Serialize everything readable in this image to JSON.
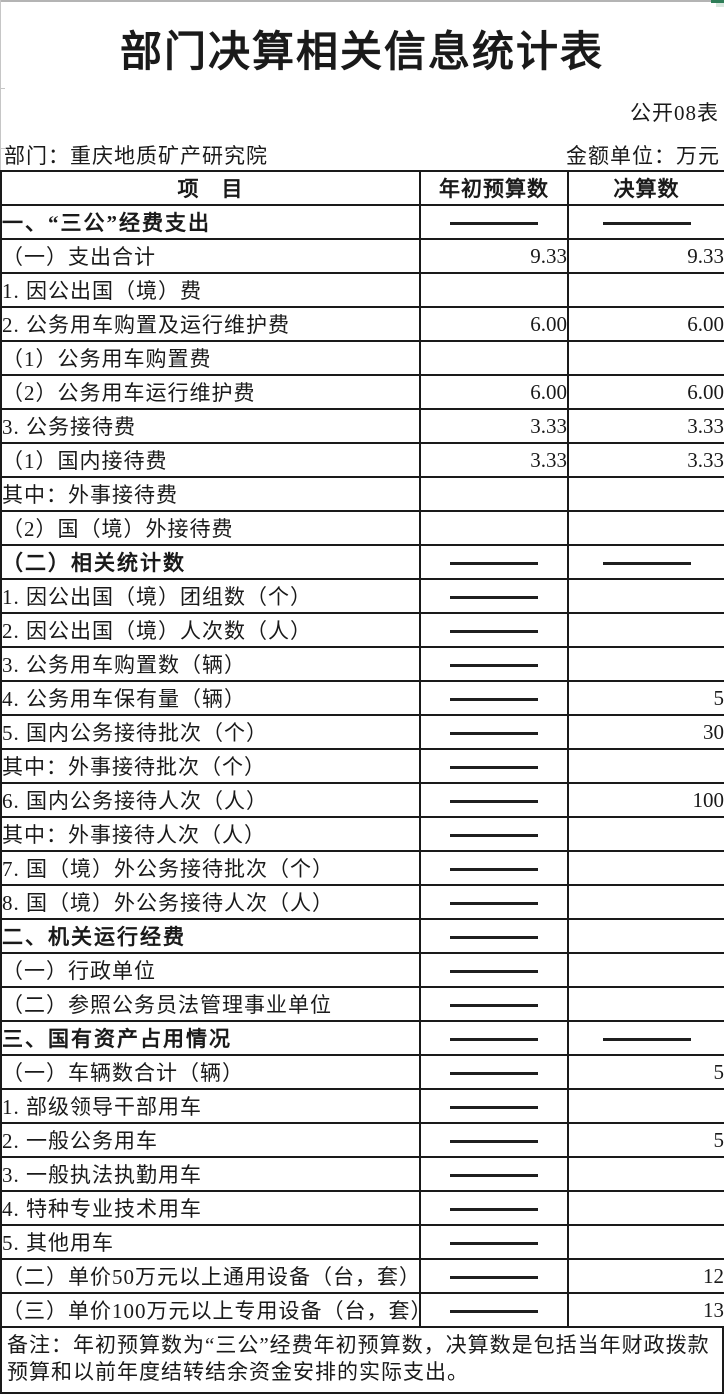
{
  "colors": {
    "excel_green": "#2e7d57",
    "gridline_gray": "#c6c6c6",
    "table_border": "#1a1a1a"
  },
  "header": {
    "title": "部门决算相关信息统计表",
    "table_code": "公开08表",
    "department_label": "部门：重庆地质矿产研究院",
    "unit_label": "金额单位：万元"
  },
  "table": {
    "columns": [
      "项　目",
      "年初预算数",
      "决算数"
    ],
    "dash_symbol": "——",
    "rows": [
      {
        "label": "一、“三公”经费支出",
        "indent": 0,
        "bold": true,
        "budget": "——",
        "final": "——"
      },
      {
        "label": "（一）支出合计",
        "indent": 0,
        "bold": false,
        "budget": "9.33",
        "final": "9.33"
      },
      {
        "label": "1. 因公出国（境）费",
        "indent": 1,
        "bold": false,
        "budget": "",
        "final": ""
      },
      {
        "label": "2. 公务用车购置及运行维护费",
        "indent": 1,
        "bold": false,
        "budget": "6.00",
        "final": "6.00"
      },
      {
        "label": "（1）公务用车购置费",
        "indent": 2,
        "bold": false,
        "budget": "",
        "final": ""
      },
      {
        "label": "（2）公务用车运行维护费",
        "indent": 2,
        "bold": false,
        "budget": "6.00",
        "final": "6.00"
      },
      {
        "label": "3. 公务接待费",
        "indent": 1,
        "bold": false,
        "budget": "3.33",
        "final": "3.33"
      },
      {
        "label": "（1）国内接待费",
        "indent": 2,
        "bold": false,
        "budget": "3.33",
        "final": "3.33"
      },
      {
        "label": "其中：外事接待费",
        "indent": 4,
        "bold": false,
        "budget": "",
        "final": ""
      },
      {
        "label": "（2）国（境）外接待费",
        "indent": 2,
        "bold": false,
        "budget": "",
        "final": ""
      },
      {
        "label": "（二）相关统计数",
        "indent": 0,
        "bold": true,
        "budget": "——",
        "final": "——"
      },
      {
        "label": "1. 因公出国（境）团组数（个）",
        "indent": 1,
        "bold": false,
        "budget": "——",
        "final": ""
      },
      {
        "label": "2. 因公出国（境）人次数（人）",
        "indent": 1,
        "bold": false,
        "budget": "——",
        "final": ""
      },
      {
        "label": "3. 公务用车购置数（辆）",
        "indent": 1,
        "bold": false,
        "budget": "——",
        "final": ""
      },
      {
        "label": "4. 公务用车保有量（辆）",
        "indent": 1,
        "bold": false,
        "budget": "——",
        "final": "5"
      },
      {
        "label": "5. 国内公务接待批次（个）",
        "indent": 1,
        "bold": false,
        "budget": "——",
        "final": "30"
      },
      {
        "label": "其中：外事接待批次（个）",
        "indent": 3,
        "bold": false,
        "budget": "——",
        "final": ""
      },
      {
        "label": "6. 国内公务接待人次（人）",
        "indent": 1,
        "bold": false,
        "budget": "——",
        "final": "100"
      },
      {
        "label": "其中：外事接待人次（人）",
        "indent": 3,
        "bold": false,
        "budget": "——",
        "final": ""
      },
      {
        "label": "7. 国（境）外公务接待批次（个）",
        "indent": 1,
        "bold": false,
        "budget": "——",
        "final": ""
      },
      {
        "label": "8. 国（境）外公务接待人次（人）",
        "indent": 1,
        "bold": false,
        "budget": "——",
        "final": ""
      },
      {
        "label": "二、机关运行经费",
        "indent": 0,
        "bold": true,
        "budget": "——",
        "final": ""
      },
      {
        "label": "（一）行政单位",
        "indent": 0,
        "bold": false,
        "budget": "——",
        "final": ""
      },
      {
        "label": "（二）参照公务员法管理事业单位",
        "indent": 0,
        "bold": false,
        "budget": "——",
        "final": ""
      },
      {
        "label": "三、国有资产占用情况",
        "indent": 0,
        "bold": true,
        "budget": "——",
        "final": "——"
      },
      {
        "label": "（一）车辆数合计（辆）",
        "indent": 0,
        "bold": false,
        "budget": "——",
        "final": "5"
      },
      {
        "label": "1. 部级领导干部用车",
        "indent": 1,
        "bold": false,
        "budget": "——",
        "final": ""
      },
      {
        "label": "2. 一般公务用车",
        "indent": 1,
        "bold": false,
        "budget": "——",
        "final": "5"
      },
      {
        "label": "3. 一般执法执勤用车",
        "indent": 1,
        "bold": false,
        "budget": "——",
        "final": ""
      },
      {
        "label": "4. 特种专业技术用车",
        "indent": 1,
        "bold": false,
        "budget": "——",
        "final": ""
      },
      {
        "label": "5. 其他用车",
        "indent": 1,
        "bold": false,
        "budget": "——",
        "final": ""
      },
      {
        "label": "（二）单价50万元以上通用设备（台，套）",
        "indent": 0,
        "bold": false,
        "budget": "——",
        "final": "12"
      },
      {
        "label": "（三）单价100万元以上专用设备（台，套）",
        "indent": 0,
        "bold": false,
        "budget": "——",
        "final": "13"
      }
    ]
  },
  "note": "备注：年初预算数为“三公”经费年初预算数，决算数是包括当年财政拨款预算和以前年度结转结余资金安排的实际支出。"
}
